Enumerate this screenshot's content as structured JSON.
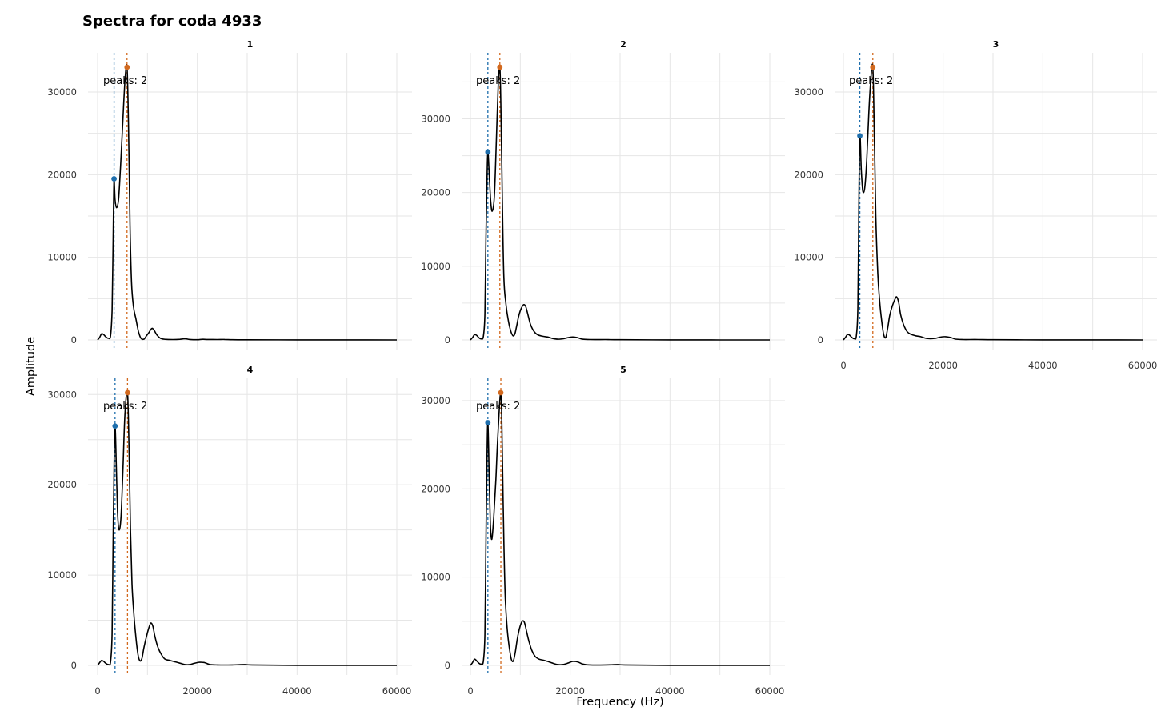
{
  "title": "Spectra for coda 4933",
  "xlabel": "Frequency (Hz)",
  "ylabel": "Amplitude",
  "colors": {
    "peak1": "#1f6fad",
    "peak2": "#d2691e",
    "line": "#000000",
    "grid": "#e6e6e6"
  },
  "chart_data": [
    {
      "type": "line",
      "facet": "1",
      "annotation": "peaks: 2",
      "xlim": [
        0,
        60000
      ],
      "ylim": [
        0,
        33000
      ],
      "xticks": [
        0,
        20000,
        40000,
        60000
      ],
      "yticks": [
        0,
        10000,
        20000,
        30000
      ],
      "x_tick_labels_shown": false,
      "peaks": [
        {
          "x": 3300,
          "y": 19500
        },
        {
          "x": 5900,
          "y": 33000
        }
      ],
      "points": [
        [
          0,
          0
        ],
        [
          400,
          300
        ],
        [
          800,
          750
        ],
        [
          1200,
          650
        ],
        [
          1700,
          350
        ],
        [
          2200,
          200
        ],
        [
          2600,
          500
        ],
        [
          2900,
          3500
        ],
        [
          3050,
          9000
        ],
        [
          3200,
          16000
        ],
        [
          3300,
          19500
        ],
        [
          3500,
          17000
        ],
        [
          3800,
          16000
        ],
        [
          4200,
          17000
        ],
        [
          4600,
          21000
        ],
        [
          5100,
          27000
        ],
        [
          5500,
          31500
        ],
        [
          5900,
          33000
        ],
        [
          6200,
          26000
        ],
        [
          6500,
          14000
        ],
        [
          6800,
          7000
        ],
        [
          7200,
          4000
        ],
        [
          7700,
          2500
        ],
        [
          8200,
          1000
        ],
        [
          8700,
          200
        ],
        [
          9300,
          100
        ],
        [
          9800,
          500
        ],
        [
          10300,
          900
        ],
        [
          10700,
          1300
        ],
        [
          11000,
          1400
        ],
        [
          11400,
          1100
        ],
        [
          11900,
          600
        ],
        [
          12600,
          200
        ],
        [
          13500,
          80
        ],
        [
          15000,
          50
        ],
        [
          16500,
          80
        ],
        [
          17500,
          150
        ],
        [
          18500,
          60
        ],
        [
          20000,
          30
        ],
        [
          21000,
          80
        ],
        [
          22000,
          60
        ],
        [
          24000,
          50
        ],
        [
          25500,
          60
        ],
        [
          27000,
          30
        ],
        [
          30000,
          20
        ],
        [
          40000,
          10
        ],
        [
          50000,
          5
        ],
        [
          60000,
          0
        ]
      ]
    },
    {
      "type": "line",
      "facet": "2",
      "annotation": "peaks: 2",
      "xlim": [
        0,
        60000
      ],
      "ylim": [
        0,
        37000
      ],
      "xticks": [
        0,
        20000,
        40000,
        60000
      ],
      "yticks": [
        0,
        10000,
        20000,
        30000
      ],
      "x_tick_labels_shown": false,
      "peaks": [
        {
          "x": 3500,
          "y": 25500
        },
        {
          "x": 5900,
          "y": 37000
        }
      ],
      "points": [
        [
          0,
          0
        ],
        [
          400,
          300
        ],
        [
          800,
          700
        ],
        [
          1200,
          650
        ],
        [
          1700,
          300
        ],
        [
          2200,
          150
        ],
        [
          2600,
          500
        ],
        [
          2900,
          3500
        ],
        [
          3100,
          13000
        ],
        [
          3300,
          21000
        ],
        [
          3500,
          25500
        ],
        [
          3800,
          22000
        ],
        [
          4100,
          18500
        ],
        [
          4400,
          17500
        ],
        [
          4800,
          19500
        ],
        [
          5200,
          27000
        ],
        [
          5600,
          35000
        ],
        [
          5900,
          37000
        ],
        [
          6100,
          32000
        ],
        [
          6400,
          19000
        ],
        [
          6700,
          8500
        ],
        [
          7100,
          5000
        ],
        [
          7500,
          3000
        ],
        [
          8000,
          1400
        ],
        [
          8500,
          600
        ],
        [
          8900,
          800
        ],
        [
          9300,
          2000
        ],
        [
          9700,
          3300
        ],
        [
          10200,
          4300
        ],
        [
          10700,
          4800
        ],
        [
          11100,
          4500
        ],
        [
          11500,
          3500
        ],
        [
          12000,
          2200
        ],
        [
          12700,
          1200
        ],
        [
          13500,
          700
        ],
        [
          14500,
          500
        ],
        [
          15500,
          400
        ],
        [
          16500,
          200
        ],
        [
          17500,
          100
        ],
        [
          18500,
          150
        ],
        [
          19500,
          300
        ],
        [
          20500,
          400
        ],
        [
          21500,
          300
        ],
        [
          22500,
          100
        ],
        [
          24000,
          50
        ],
        [
          27000,
          50
        ],
        [
          30000,
          30
        ],
        [
          40000,
          10
        ],
        [
          50000,
          5
        ],
        [
          60000,
          0
        ]
      ]
    },
    {
      "type": "line",
      "facet": "3",
      "annotation": "peaks: 2",
      "xlim": [
        0,
        60000
      ],
      "ylim": [
        0,
        33000
      ],
      "xticks": [
        0,
        20000,
        40000,
        60000
      ],
      "yticks": [
        0,
        10000,
        20000,
        30000
      ],
      "x_tick_labels_shown": true,
      "peaks": [
        {
          "x": 3300,
          "y": 24700
        },
        {
          "x": 5900,
          "y": 33000
        }
      ],
      "points": [
        [
          0,
          0
        ],
        [
          400,
          300
        ],
        [
          800,
          650
        ],
        [
          1200,
          600
        ],
        [
          1700,
          300
        ],
        [
          2200,
          150
        ],
        [
          2600,
          500
        ],
        [
          2900,
          4000
        ],
        [
          3100,
          16000
        ],
        [
          3300,
          24700
        ],
        [
          3600,
          20500
        ],
        [
          3900,
          18000
        ],
        [
          4300,
          18500
        ],
        [
          4700,
          22000
        ],
        [
          5100,
          27500
        ],
        [
          5500,
          31500
        ],
        [
          5900,
          33000
        ],
        [
          6200,
          25000
        ],
        [
          6500,
          15000
        ],
        [
          6900,
          8000
        ],
        [
          7300,
          4500
        ],
        [
          7700,
          2200
        ],
        [
          8100,
          600
        ],
        [
          8500,
          300
        ],
        [
          8900,
          1500
        ],
        [
          9300,
          3000
        ],
        [
          9800,
          4100
        ],
        [
          10400,
          5000
        ],
        [
          10700,
          5200
        ],
        [
          11100,
          4500
        ],
        [
          11500,
          3000
        ],
        [
          12100,
          1800
        ],
        [
          12800,
          1000
        ],
        [
          13500,
          700
        ],
        [
          14500,
          500
        ],
        [
          15500,
          400
        ],
        [
          16500,
          200
        ],
        [
          17500,
          150
        ],
        [
          18500,
          200
        ],
        [
          19500,
          350
        ],
        [
          20500,
          400
        ],
        [
          21500,
          300
        ],
        [
          22500,
          100
        ],
        [
          24000,
          50
        ],
        [
          27000,
          50
        ],
        [
          30000,
          30
        ],
        [
          40000,
          10
        ],
        [
          50000,
          5
        ],
        [
          60000,
          0
        ]
      ]
    },
    {
      "type": "line",
      "facet": "4",
      "annotation": "peaks: 2",
      "xlim": [
        0,
        60000
      ],
      "ylim": [
        0,
        30200
      ],
      "xticks": [
        0,
        20000,
        40000,
        60000
      ],
      "yticks": [
        0,
        10000,
        20000,
        30000
      ],
      "x_tick_labels_shown": true,
      "peaks": [
        {
          "x": 3500,
          "y": 26500
        },
        {
          "x": 6000,
          "y": 30200
        }
      ],
      "points": [
        [
          0,
          0
        ],
        [
          400,
          300
        ],
        [
          800,
          550
        ],
        [
          1200,
          450
        ],
        [
          1700,
          200
        ],
        [
          2200,
          100
        ],
        [
          2600,
          400
        ],
        [
          2900,
          3500
        ],
        [
          3100,
          13000
        ],
        [
          3300,
          22000
        ],
        [
          3500,
          26500
        ],
        [
          3750,
          22000
        ],
        [
          4000,
          17000
        ],
        [
          4300,
          15000
        ],
        [
          4700,
          16500
        ],
        [
          5100,
          22000
        ],
        [
          5500,
          28000
        ],
        [
          6000,
          30200
        ],
        [
          6300,
          24000
        ],
        [
          6600,
          15000
        ],
        [
          6900,
          9000
        ],
        [
          7300,
          5500
        ],
        [
          7700,
          3000
        ],
        [
          8100,
          1200
        ],
        [
          8500,
          500
        ],
        [
          8900,
          800
        ],
        [
          9300,
          2000
        ],
        [
          9800,
          3200
        ],
        [
          10300,
          4200
        ],
        [
          10700,
          4700
        ],
        [
          11100,
          4300
        ],
        [
          11500,
          3200
        ],
        [
          12100,
          2000
        ],
        [
          12800,
          1200
        ],
        [
          13500,
          700
        ],
        [
          14500,
          550
        ],
        [
          15500,
          400
        ],
        [
          16500,
          250
        ],
        [
          17500,
          100
        ],
        [
          18500,
          100
        ],
        [
          19500,
          250
        ],
        [
          20500,
          350
        ],
        [
          21500,
          300
        ],
        [
          22500,
          100
        ],
        [
          24000,
          50
        ],
        [
          27000,
          50
        ],
        [
          29500,
          100
        ],
        [
          31000,
          50
        ],
        [
          40000,
          10
        ],
        [
          50000,
          5
        ],
        [
          60000,
          0
        ]
      ]
    },
    {
      "type": "line",
      "facet": "5",
      "annotation": "peaks: 2",
      "xlim": [
        0,
        60000
      ],
      "ylim": [
        0,
        30900
      ],
      "xticks": [
        0,
        20000,
        40000,
        60000
      ],
      "yticks": [
        0,
        10000,
        20000,
        30000
      ],
      "x_tick_labels_shown": true,
      "peaks": [
        {
          "x": 3500,
          "y": 27500
        },
        {
          "x": 6100,
          "y": 30900
        }
      ],
      "points": [
        [
          0,
          0
        ],
        [
          400,
          300
        ],
        [
          800,
          700
        ],
        [
          1200,
          550
        ],
        [
          1700,
          250
        ],
        [
          2200,
          150
        ],
        [
          2600,
          500
        ],
        [
          2900,
          3500
        ],
        [
          3100,
          13000
        ],
        [
          3300,
          22500
        ],
        [
          3500,
          27500
        ],
        [
          3750,
          21500
        ],
        [
          4000,
          16000
        ],
        [
          4300,
          14300
        ],
        [
          4700,
          17000
        ],
        [
          5100,
          21000
        ],
        [
          5500,
          26000
        ],
        [
          6100,
          30900
        ],
        [
          6400,
          24000
        ],
        [
          6700,
          14000
        ],
        [
          7000,
          7500
        ],
        [
          7400,
          4000
        ],
        [
          7800,
          2000
        ],
        [
          8200,
          700
        ],
        [
          8600,
          500
        ],
        [
          9000,
          1500
        ],
        [
          9400,
          3000
        ],
        [
          9900,
          4300
        ],
        [
          10400,
          5000
        ],
        [
          10800,
          4900
        ],
        [
          11200,
          4000
        ],
        [
          11700,
          2800
        ],
        [
          12300,
          1700
        ],
        [
          13000,
          1000
        ],
        [
          13800,
          700
        ],
        [
          14600,
          600
        ],
        [
          15500,
          450
        ],
        [
          16500,
          250
        ],
        [
          17500,
          100
        ],
        [
          18500,
          100
        ],
        [
          19500,
          250
        ],
        [
          20500,
          450
        ],
        [
          21500,
          400
        ],
        [
          22500,
          150
        ],
        [
          24000,
          50
        ],
        [
          27000,
          50
        ],
        [
          29500,
          100
        ],
        [
          31000,
          50
        ],
        [
          40000,
          10
        ],
        [
          50000,
          5
        ],
        [
          60000,
          0
        ]
      ]
    }
  ]
}
